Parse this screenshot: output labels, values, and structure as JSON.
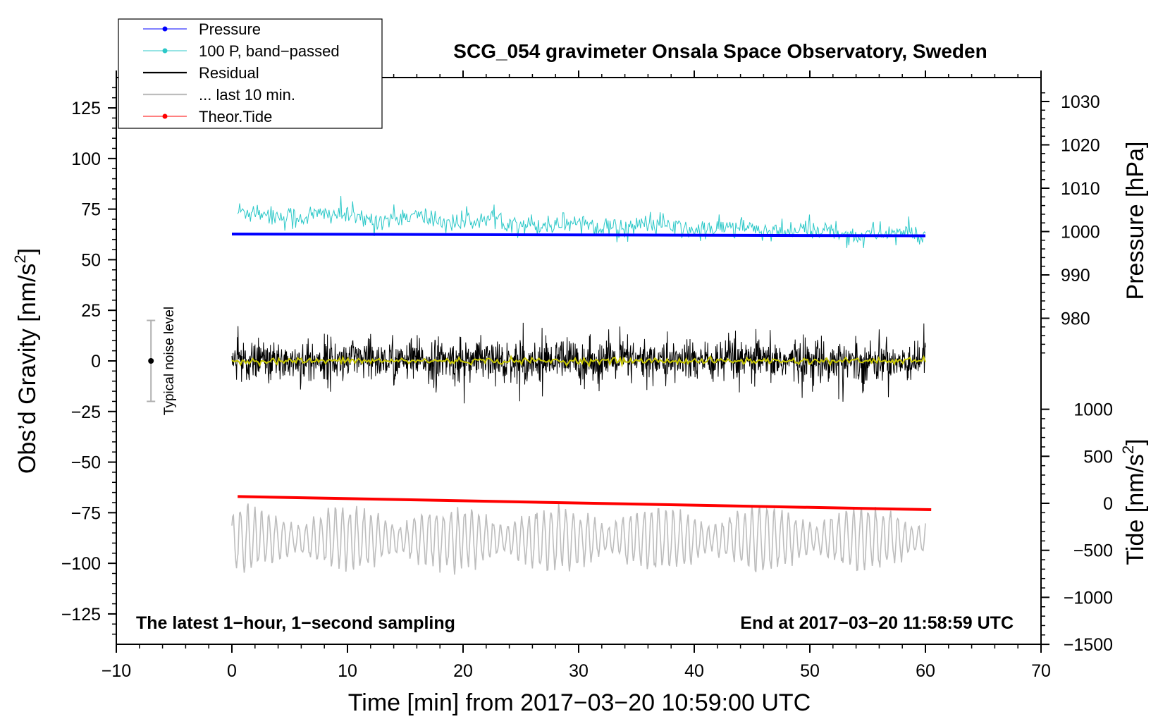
{
  "chart_data": {
    "type": "line",
    "title": "SCG_054 gravimeter Onsala Space Observatory, Sweden",
    "xlabel": "Time [min] from 2017−03−20 10:59:00 UTC",
    "ylabel_left_main": "Obs’d Gravity [nm/s",
    "ylabel_left_sup": "2",
    "ylabel_left_end": "]",
    "ylabel_right_pressure": "Pressure [hPa]",
    "ylabel_right_tide_main": "Tide [nm/s",
    "ylabel_right_tide_sup": "2",
    "ylabel_right_tide_end": "]",
    "xlim": [
      -10,
      70
    ],
    "ylim": [
      -140,
      140
    ],
    "pressure_ylim_units": [
      972,
      1033
    ],
    "tide_ylim_units": [
      -1500,
      1000
    ],
    "x_ticks": [
      "−10",
      "0",
      "10",
      "20",
      "30",
      "40",
      "50",
      "60",
      "70"
    ],
    "x_tick_values": [
      -10,
      0,
      10,
      20,
      30,
      40,
      50,
      60,
      70
    ],
    "y_ticks": [
      "125",
      "100",
      "75",
      "50",
      "25",
      "0",
      "−25",
      "−50",
      "−75",
      "−100",
      "−125"
    ],
    "y_tick_values": [
      125,
      100,
      75,
      50,
      25,
      0,
      -25,
      -50,
      -75,
      -100,
      -125
    ],
    "pressure_ticks": [
      "1030",
      "1020",
      "1010",
      "1000",
      "990",
      "980"
    ],
    "pressure_tick_values": [
      1030,
      1020,
      1010,
      1000,
      990,
      980
    ],
    "tide_ticks": [
      "1000",
      "500",
      "0",
      "−500",
      "−1000",
      "−1500"
    ],
    "tide_tick_values": [
      1000,
      500,
      0,
      -500,
      -1000,
      -1500
    ],
    "legend": [
      {
        "label": "Pressure",
        "color": "#0000ff",
        "marker": true
      },
      {
        "label": "100 P, band−passed",
        "color": "#2cc8c8",
        "marker": true
      },
      {
        "label": "Residual",
        "color": "#000000",
        "marker": false
      },
      {
        "label": "... last 10 min.",
        "color": "#bdbdbd",
        "marker": false
      },
      {
        "label": "Theor.Tide",
        "color": "#ff0000",
        "marker": true
      }
    ],
    "note_left": "The latest 1−hour, 1−second sampling",
    "note_right": "End at 2017−03−20 11:58:59 UTC",
    "noise_label": "Typical noise level",
    "noise_bar": {
      "x": -7,
      "center": 0,
      "low": -20,
      "high": 20
    },
    "series": [
      {
        "name": "Pressure",
        "color": "#0000ff",
        "x_range": [
          0,
          60
        ],
        "y_start": 62.7,
        "y_end": 61.8
      },
      {
        "name": "100 P, band−passed",
        "color": "#2cc8c8",
        "x_range": [
          0.5,
          60
        ],
        "y_start": 73,
        "y_end": 62,
        "noise_amplitude": 3.5
      },
      {
        "name": "Residual",
        "color": "#000000",
        "x_range": [
          0,
          60
        ],
        "y_center": 0,
        "noise_amplitude": 10
      },
      {
        "name": "Residual smoothed",
        "color": "#c8c800",
        "x_range": [
          0,
          60
        ],
        "y_center": 0,
        "noise_amplitude": 0.8
      },
      {
        "name": "... last 10 min.",
        "color": "#bdbdbd",
        "x_range": [
          0,
          60
        ],
        "y_center": -88,
        "noise_amplitude": 10
      },
      {
        "name": "Theor.Tide",
        "color": "#ff0000",
        "x_range": [
          0.5,
          60.5
        ],
        "y_start": -67,
        "y_end": -73.5
      }
    ]
  }
}
